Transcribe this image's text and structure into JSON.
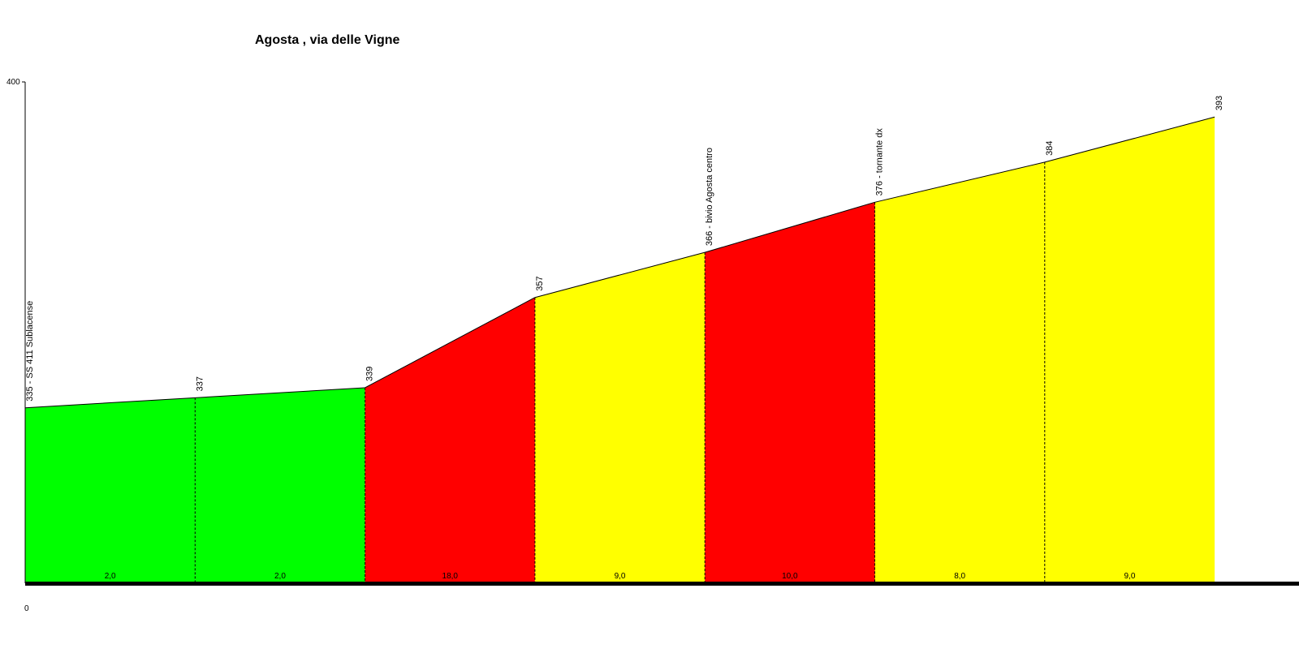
{
  "chart_data": {
    "type": "area",
    "title": "Agosta , via delle Vigne",
    "xlabel": "",
    "ylabel": "",
    "ylim": [
      0,
      400
    ],
    "y_tick_labels": [
      "0",
      "400"
    ],
    "x_km": [
      0,
      0.5,
      1.0,
      1.5,
      2.0,
      2.5,
      3.0,
      3.5
    ],
    "altitudes": [
      335,
      337,
      339,
      357,
      366,
      376,
      384,
      393
    ],
    "point_labels": [
      "335 - SS 411 Sublacense",
      "337",
      "339",
      "357",
      "366 - bivio Agosta centro",
      "376 - tornante dx",
      "384",
      "393"
    ],
    "segments": [
      {
        "grade_label": "2,0",
        "color": "#00ff00"
      },
      {
        "grade_label": "2,0",
        "color": "#00ff00"
      },
      {
        "grade_label": "18,0",
        "color": "#ff0000"
      },
      {
        "grade_label": "9,0",
        "color": "#ffff00"
      },
      {
        "grade_label": "10,0",
        "color": "#ff0000"
      },
      {
        "grade_label": "8,0",
        "color": "#ffff00"
      },
      {
        "grade_label": "9,0",
        "color": "#ffff00"
      }
    ],
    "grid": false,
    "legend": "none"
  }
}
